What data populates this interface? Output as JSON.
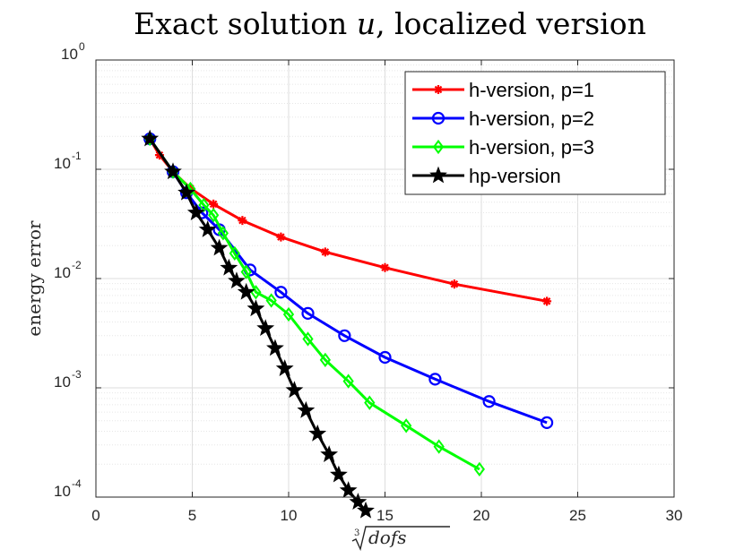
{
  "chart_data": {
    "type": "line",
    "title": "Exact solution u, localized version",
    "title_prefix": "Exact solution ",
    "title_var": "u",
    "title_suffix": ", localized version",
    "xlabel": "∛dofs",
    "xlabel_root": "3",
    "xlabel_text": "dofs",
    "ylabel": "energy error",
    "xlim": [
      0,
      30
    ],
    "ylim": [
      8e-05,
      1
    ],
    "yscale": "log",
    "grid": true,
    "legend_position": "top-right",
    "x_ticks": [
      "0",
      "5",
      "10",
      "15",
      "20",
      "25",
      "30"
    ],
    "x_tick_values": [
      0,
      5,
      10,
      15,
      20,
      25,
      30
    ],
    "y_ticks": [
      {
        "base": "10",
        "exp": "0",
        "value": 1
      },
      {
        "base": "10",
        "exp": "-1",
        "value": 0.1
      },
      {
        "base": "10",
        "exp": "-2",
        "value": 0.01
      },
      {
        "base": "10",
        "exp": "-3",
        "value": 0.001
      },
      {
        "base": "10",
        "exp": "-4",
        "value": 0.0001
      }
    ],
    "series": [
      {
        "name": "h-version, p=1",
        "color": "#ff0000",
        "marker": "asterisk",
        "x": [
          2.8,
          3.3,
          4.0,
          4.9,
          6.1,
          7.6,
          9.6,
          11.9,
          15.0,
          18.6,
          23.4
        ],
        "y": [
          0.19,
          0.135,
          0.095,
          0.067,
          0.048,
          0.034,
          0.024,
          0.0175,
          0.0126,
          0.0089,
          0.0062
        ]
      },
      {
        "name": "h-version, p=2",
        "color": "#0000ff",
        "marker": "circle",
        "x": [
          2.8,
          4.0,
          4.7,
          5.5,
          6.4,
          8.0,
          9.6,
          11.0,
          12.9,
          15.0,
          17.6,
          20.4,
          23.4
        ],
        "y": [
          0.19,
          0.095,
          0.061,
          0.04,
          0.028,
          0.012,
          0.0075,
          0.0048,
          0.003,
          0.0019,
          0.0012,
          0.00075,
          0.00048
        ]
      },
      {
        "name": "h-version, p=3",
        "color": "#00ff00",
        "marker": "diamond",
        "x": [
          2.8,
          4.0,
          4.9,
          5.6,
          6.1,
          6.6,
          7.2,
          7.8,
          8.3,
          9.1,
          10.0,
          11.0,
          11.9,
          13.1,
          14.2,
          16.1,
          17.8,
          19.9
        ],
        "y": [
          0.19,
          0.095,
          0.066,
          0.047,
          0.038,
          0.026,
          0.017,
          0.0115,
          0.0075,
          0.0063,
          0.0047,
          0.0028,
          0.0018,
          0.00115,
          0.00073,
          0.00045,
          0.00029,
          0.00018
        ]
      },
      {
        "name": "hp-version",
        "color": "#000000",
        "marker": "star",
        "x": [
          2.8,
          4.0,
          4.7,
          5.2,
          5.8,
          6.4,
          6.9,
          7.3,
          7.8,
          8.3,
          8.8,
          9.3,
          9.8,
          10.3,
          10.9,
          11.5,
          12.1,
          12.6,
          13.1,
          13.6,
          14.0
        ],
        "y": [
          0.19,
          0.095,
          0.061,
          0.04,
          0.028,
          0.019,
          0.0125,
          0.0095,
          0.0075,
          0.0053,
          0.0035,
          0.0023,
          0.0015,
          0.00095,
          0.00062,
          0.00038,
          0.000245,
          0.00016,
          0.000115,
          9e-05,
          7.5e-05
        ]
      }
    ]
  }
}
